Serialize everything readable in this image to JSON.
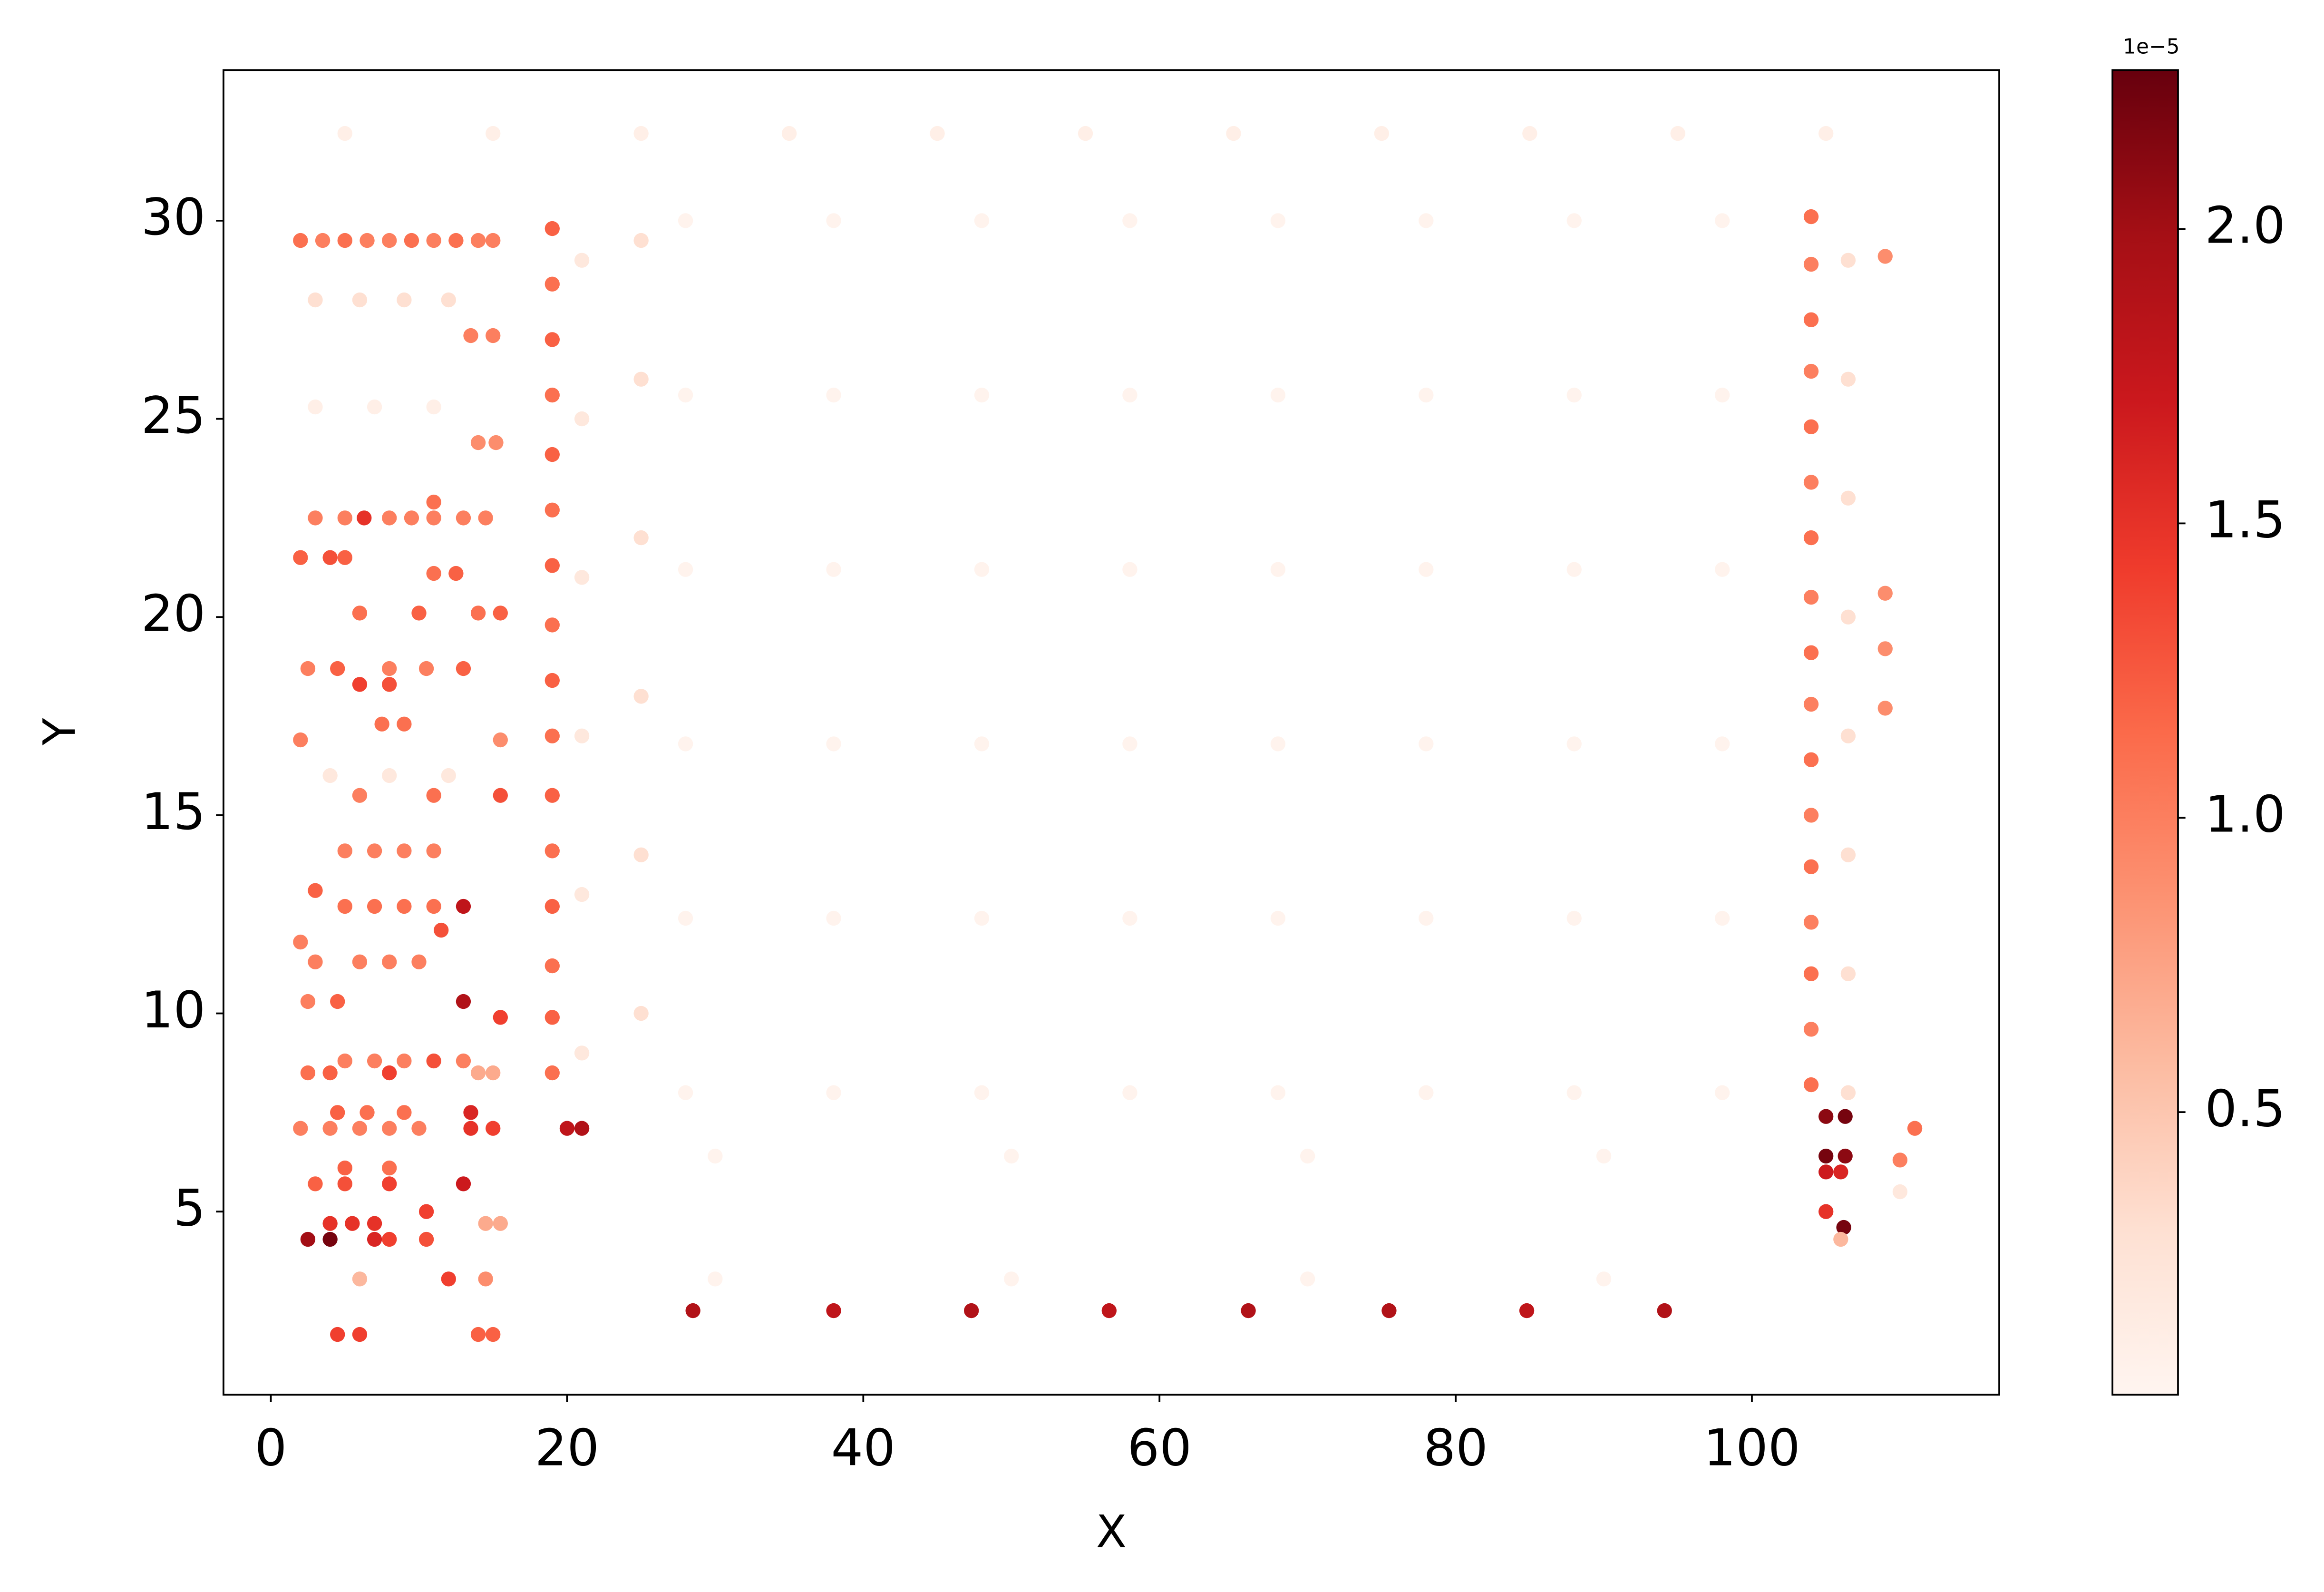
{
  "chart_data": {
    "type": "scatter",
    "xlabel": "X",
    "ylabel": "Y",
    "xlim": [
      -3.2,
      116.7
    ],
    "ylim": [
      0.38,
      33.8
    ],
    "xticks": [
      0,
      20,
      40,
      60,
      80,
      100
    ],
    "yticks": [
      5,
      10,
      15,
      20,
      25,
      30
    ],
    "colorbar": {
      "colormap": "Reds",
      "clim": [
        0.02,
        2.27
      ],
      "cticks": [
        0.5,
        {
          "value": 1.0,
          "label": "1.0"
        },
        1.5,
        {
          "value": 2.0,
          "label": "2.0"
        }
      ],
      "offset_label": "1e−5"
    },
    "x": [
      28,
      38,
      48,
      58,
      68,
      78,
      88,
      98,
      28,
      38,
      48,
      58,
      68,
      78,
      88,
      98,
      28,
      38,
      48,
      58,
      68,
      78,
      88,
      98,
      28,
      38,
      48,
      58,
      68,
      78,
      88,
      98,
      28,
      38,
      48,
      58,
      68,
      78,
      88,
      98,
      28,
      38,
      48,
      58,
      68,
      78,
      88,
      98,
      30,
      50,
      70,
      90,
      30,
      50,
      70,
      90,
      5,
      15,
      25,
      35,
      45,
      55,
      65,
      75,
      85,
      95,
      105,
      21,
      21,
      21,
      21,
      21,
      21,
      25,
      25,
      25,
      25,
      25,
      25,
      106.5,
      106.5,
      106.5,
      106.5,
      106.5,
      106.5,
      106.5,
      106.5,
      2,
      3.5,
      5,
      6.5,
      8,
      9.5,
      11,
      12.5,
      14,
      15,
      3,
      6,
      9,
      12,
      13.5,
      15,
      3,
      7,
      11,
      14,
      15.2,
      3,
      5,
      6.3,
      8,
      9.5,
      11,
      13,
      14.5,
      11,
      2,
      4,
      5,
      11,
      12.5,
      6,
      10,
      14,
      15.5,
      2.5,
      4.5,
      8,
      10.5,
      13,
      6,
      8,
      7.5,
      9,
      2,
      15.5,
      4,
      8,
      12,
      6,
      11,
      15.5,
      5,
      7,
      9,
      11,
      3,
      5,
      7,
      9,
      11,
      13,
      11.5,
      2,
      3,
      6,
      8,
      10,
      2.5,
      4.5,
      13,
      15.5,
      5,
      7,
      9,
      11,
      13,
      2.5,
      4,
      8,
      14,
      15,
      4.5,
      6.5,
      9,
      13.5,
      2,
      4,
      6,
      8,
      10,
      13.5,
      15,
      5,
      8,
      3,
      5,
      8,
      13,
      10.5,
      4,
      5.5,
      7,
      14.5,
      15.5,
      2.5,
      4,
      7,
      8,
      10.5,
      6,
      12,
      14.5,
      4.5,
      6,
      15,
      14,
      19,
      19,
      19,
      19,
      19,
      19,
      19,
      19,
      19,
      19,
      19,
      19,
      19,
      19,
      19,
      19,
      20,
      21,
      28.5,
      38,
      47.3,
      56.6,
      66,
      75.5,
      84.8,
      94.1,
      104,
      104,
      104,
      104,
      104,
      104,
      104,
      104,
      104,
      104,
      104,
      104,
      104,
      104,
      104,
      104,
      104,
      109,
      109,
      109,
      109,
      105,
      106.3,
      105,
      106.3,
      105,
      106,
      105,
      106.2,
      106,
      111,
      110,
      110
    ],
    "y": [
      8,
      8,
      8,
      8,
      8,
      8,
      8,
      8,
      12.4,
      12.4,
      12.4,
      12.4,
      12.4,
      12.4,
      12.4,
      12.4,
      16.8,
      16.8,
      16.8,
      16.8,
      16.8,
      16.8,
      16.8,
      16.8,
      21.2,
      21.2,
      21.2,
      21.2,
      21.2,
      21.2,
      21.2,
      21.2,
      25.6,
      25.6,
      25.6,
      25.6,
      25.6,
      25.6,
      25.6,
      25.6,
      30,
      30,
      30,
      30,
      30,
      30,
      30,
      30,
      6.4,
      6.4,
      6.4,
      6.4,
      3.3,
      3.3,
      3.3,
      3.3,
      32.2,
      32.2,
      32.2,
      32.2,
      32.2,
      32.2,
      32.2,
      32.2,
      32.2,
      32.2,
      32.2,
      29,
      25,
      21,
      17,
      13,
      9,
      29.5,
      26,
      22,
      18,
      14,
      10,
      29,
      26,
      23,
      20,
      17,
      14,
      11,
      8,
      29.5,
      29.5,
      29.5,
      29.5,
      29.5,
      29.5,
      29.5,
      29.5,
      29.5,
      29.5,
      28,
      28,
      28,
      28,
      27.1,
      27.1,
      25.3,
      25.3,
      25.3,
      24.4,
      24.4,
      22.5,
      22.5,
      22.5,
      22.5,
      22.5,
      22.5,
      22.5,
      22.5,
      22.9,
      21.5,
      21.5,
      21.5,
      21.1,
      21.1,
      20.1,
      20.1,
      20.1,
      20.1,
      18.7,
      18.7,
      18.7,
      18.7,
      18.7,
      18.3,
      18.3,
      17.3,
      17.3,
      16.9,
      16.9,
      16,
      16,
      16,
      15.5,
      15.5,
      15.5,
      14.1,
      14.1,
      14.1,
      14.1,
      13.1,
      12.7,
      12.7,
      12.7,
      12.7,
      12.7,
      12.1,
      11.8,
      11.3,
      11.3,
      11.3,
      11.3,
      10.3,
      10.3,
      10.3,
      9.9,
      8.8,
      8.8,
      8.8,
      8.8,
      8.8,
      8.5,
      8.5,
      8.5,
      8.5,
      8.5,
      7.5,
      7.5,
      7.5,
      7.5,
      7.1,
      7.1,
      7.1,
      7.1,
      7.1,
      7.1,
      7.1,
      6.1,
      6.1,
      5.7,
      5.7,
      5.7,
      5.7,
      5,
      4.7,
      4.7,
      4.7,
      4.7,
      4.7,
      4.3,
      4.3,
      4.3,
      4.3,
      4.3,
      3.3,
      3.3,
      3.3,
      1.9,
      1.9,
      1.9,
      1.9,
      29.8,
      28.4,
      27,
      25.6,
      24.1,
      22.7,
      21.3,
      19.8,
      18.4,
      17,
      15.5,
      14.1,
      12.7,
      11.2,
      9.9,
      8.5,
      7.1,
      7.1,
      2.5,
      2.5,
      2.5,
      2.5,
      2.5,
      2.5,
      2.5,
      2.5,
      30.1,
      28.9,
      27.5,
      26.2,
      24.8,
      23.4,
      22,
      20.5,
      19.1,
      17.8,
      16.4,
      15,
      13.7,
      12.3,
      11,
      9.6,
      8.2,
      29.1,
      20.6,
      19.2,
      17.7,
      7.4,
      7.4,
      6.4,
      6.4,
      6,
      6,
      5,
      4.6,
      4.3,
      7.1,
      6.3,
      5.5
    ],
    "c": [
      0.05,
      0.05,
      0.05,
      0.05,
      0.05,
      0.05,
      0.05,
      0.05,
      0.05,
      0.05,
      0.05,
      0.05,
      0.05,
      0.05,
      0.05,
      0.05,
      0.05,
      0.05,
      0.05,
      0.05,
      0.05,
      0.05,
      0.05,
      0.05,
      0.05,
      0.05,
      0.05,
      0.05,
      0.05,
      0.05,
      0.05,
      0.05,
      0.05,
      0.05,
      0.05,
      0.05,
      0.05,
      0.05,
      0.05,
      0.05,
      0.05,
      0.05,
      0.05,
      0.05,
      0.05,
      0.05,
      0.05,
      0.05,
      0.05,
      0.05,
      0.05,
      0.05,
      0.05,
      0.05,
      0.05,
      0.05,
      0.1,
      0.1,
      0.1,
      0.1,
      0.1,
      0.1,
      0.1,
      0.1,
      0.1,
      0.1,
      0.1,
      0.2,
      0.2,
      0.2,
      0.2,
      0.2,
      0.2,
      0.3,
      0.3,
      0.3,
      0.3,
      0.3,
      0.3,
      0.3,
      0.3,
      0.3,
      0.3,
      0.3,
      0.3,
      0.3,
      0.3,
      1.1,
      1.0,
      1.1,
      1.0,
      1.0,
      1.1,
      1.0,
      1.1,
      1.0,
      1.0,
      0.3,
      0.3,
      0.3,
      0.3,
      1.0,
      1.0,
      0.1,
      0.1,
      0.1,
      0.9,
      0.9,
      1.0,
      1.0,
      1.5,
      1.0,
      1.0,
      1.0,
      1.0,
      1.0,
      1.1,
      1.2,
      1.3,
      1.2,
      1.1,
      1.2,
      1.1,
      1.2,
      1.1,
      1.2,
      1.0,
      1.2,
      1.0,
      1.0,
      1.2,
      1.4,
      1.3,
      1.1,
      1.1,
      1.0,
      0.9,
      0.2,
      0.2,
      0.2,
      1.0,
      1.1,
      1.3,
      1.0,
      1.0,
      1.0,
      1.0,
      1.2,
      1.1,
      1.1,
      1.1,
      1.1,
      1.8,
      1.3,
      1.0,
      1.0,
      1.0,
      1.0,
      1.0,
      1.0,
      1.2,
      1.9,
      1.4,
      1.0,
      1.0,
      1.0,
      1.3,
      1.0,
      1.1,
      1.2,
      1.4,
      0.7,
      0.7,
      1.2,
      1.1,
      1.1,
      1.6,
      1.0,
      1.0,
      1.0,
      1.0,
      1.0,
      1.5,
      1.4,
      1.2,
      1.1,
      1.2,
      1.3,
      1.4,
      1.7,
      1.4,
      1.5,
      1.5,
      1.5,
      0.7,
      0.7,
      2.0,
      2.2,
      1.6,
      1.4,
      1.3,
      0.6,
      1.4,
      0.9,
      1.4,
      1.4,
      1.2,
      1.2,
      1.2,
      1.1,
      1.2,
      1.1,
      1.2,
      1.1,
      1.2,
      1.1,
      1.2,
      1.1,
      1.2,
      1.1,
      1.2,
      1.1,
      1.2,
      1.1,
      1.8,
      1.9,
      1.9,
      1.8,
      1.9,
      1.8,
      1.9,
      1.9,
      1.8,
      1.9,
      1.1,
      1.0,
      1.1,
      1.0,
      1.1,
      1.0,
      1.1,
      1.0,
      1.1,
      1.0,
      1.1,
      1.0,
      1.1,
      1.0,
      1.1,
      1.0,
      1.1,
      0.9,
      0.9,
      0.9,
      0.9,
      2.1,
      2.2,
      2.2,
      2.1,
      1.7,
      1.6,
      1.5,
      2.2,
      0.6,
      1.1,
      1.0,
      0.2
    ]
  }
}
